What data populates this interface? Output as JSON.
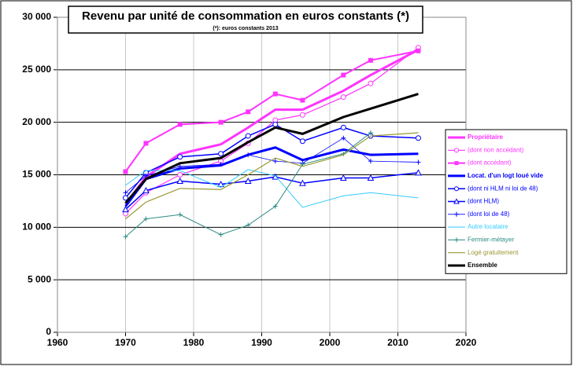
{
  "chart_data": {
    "type": "line",
    "title": "Revenu par unité de consommation en euros constants (*)",
    "subtitle": "(*): euros constants 2013",
    "x": [
      1970,
      1973,
      1978,
      1984,
      1988,
      1992,
      1996,
      2002,
      2006,
      2013
    ],
    "xlim": [
      1960,
      2020
    ],
    "xticks": [
      1960,
      1970,
      1980,
      1990,
      2000,
      2010,
      2020
    ],
    "ylim": [
      0,
      30000
    ],
    "yticks": [
      0,
      {
        "value": 5000,
        "label": "5 000"
      },
      {
        "value": 10000,
        "label": "10 000"
      },
      {
        "value": 15000,
        "label": "15 000"
      },
      {
        "value": 20000,
        "label": "20 000"
      },
      {
        "value": 25000,
        "label": "25 000"
      },
      {
        "value": 30000,
        "label": "30 000"
      }
    ],
    "grid": true,
    "legend": "right",
    "series": [
      {
        "name": "Propriétaire",
        "color": "#ff33ff",
        "width": 3,
        "marker": "none",
        "values": [
          12200,
          14800,
          17000,
          17900,
          19500,
          21200,
          21200,
          23000,
          24500,
          26900
        ]
      },
      {
        "name": "(dont non accédant)",
        "color": "#ff33ff",
        "width": 1.2,
        "marker": "circle",
        "values": [
          11300,
          13300,
          15000,
          16300,
          18000,
          20200,
          20700,
          22400,
          23700,
          27100
        ]
      },
      {
        "name": "(dont accédant)",
        "color": "#ff33ff",
        "width": 2,
        "marker": "square",
        "values": [
          15300,
          18000,
          19800,
          20000,
          21000,
          22700,
          22100,
          24500,
          25900,
          26800
        ]
      },
      {
        "name": "Locat. d'un logt loué vide",
        "color": "#0000ff",
        "width": 3,
        "marker": "none",
        "values": [
          12000,
          14600,
          15600,
          15900,
          16900,
          17600,
          16400,
          17400,
          16900,
          17000
        ]
      },
      {
        "name": "(dont ni HLM ni loi de 48)",
        "color": "#0000ff",
        "width": 1.5,
        "marker": "circle",
        "values": [
          12800,
          15200,
          16700,
          17000,
          18700,
          19800,
          18200,
          19500,
          18700,
          18500
        ]
      },
      {
        "name": "(dont HLM)",
        "color": "#0000ff",
        "width": 1.5,
        "marker": "triangle",
        "values": [
          11700,
          13500,
          14400,
          14100,
          14400,
          14800,
          14200,
          14700,
          14700,
          15200
        ]
      },
      {
        "name": "(dont loi de 48)",
        "color": "#0000ff",
        "width": 0.8,
        "marker": "plus",
        "values": [
          13300,
          14900,
          15800,
          16000,
          16900,
          16300,
          16100,
          18500,
          16300,
          16200
        ]
      },
      {
        "name": "Autre locataire",
        "color": "#33ccff",
        "width": 1,
        "marker": "none",
        "values": [
          14000,
          15400,
          15400,
          13800,
          15500,
          14900,
          11900,
          13000,
          13300,
          12800
        ]
      },
      {
        "name": "Fermier-métayer",
        "color": "#2e8b84",
        "width": 1,
        "marker": "plus",
        "values": [
          9100,
          10800,
          11200,
          9300,
          10200,
          12000,
          16000,
          17000,
          19000,
          null
        ]
      },
      {
        "name": "Logé gratuitement",
        "color": "#999933",
        "width": 1.2,
        "marker": "none",
        "values": [
          10800,
          12400,
          13700,
          13600,
          15000,
          16600,
          15800,
          16900,
          18700,
          19000
        ]
      },
      {
        "name": "Ensemble",
        "color": "#000000",
        "width": 3,
        "marker": "none",
        "values": [
          12300,
          14600,
          16100,
          16600,
          18100,
          19500,
          18900,
          20500,
          21300,
          22700
        ]
      }
    ]
  }
}
